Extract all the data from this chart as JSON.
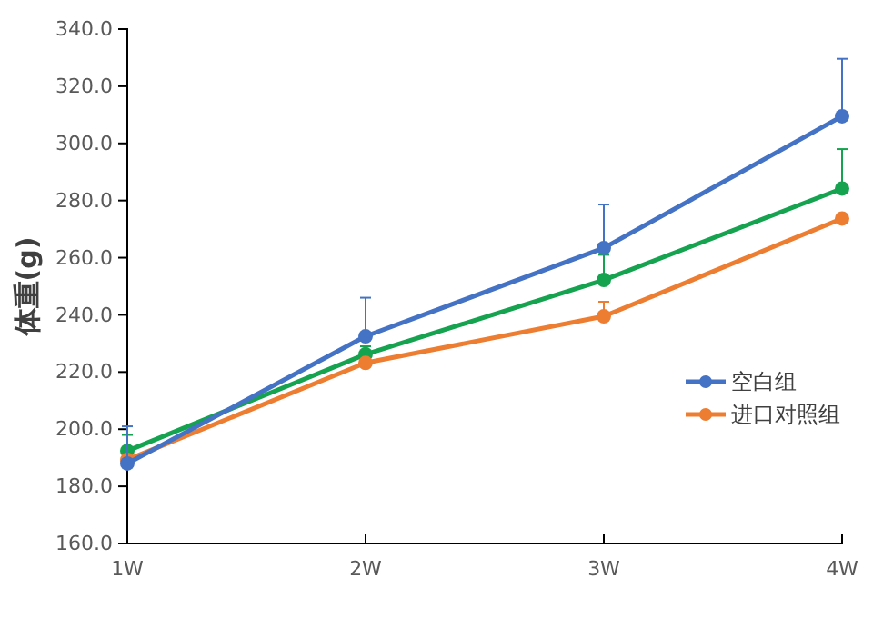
{
  "chart_data": {
    "type": "line",
    "ylabel": "体重(g)",
    "categories": [
      "1W",
      "2W",
      "3W",
      "4W"
    ],
    "ylim": [
      160,
      340
    ],
    "yticks": [
      {
        "value": 160,
        "label": "160.0"
      },
      {
        "value": 180,
        "label": "180.0"
      },
      {
        "value": 200,
        "label": "200.0"
      },
      {
        "value": 220,
        "label": "220.0"
      },
      {
        "value": 240,
        "label": "240.0"
      },
      {
        "value": 260,
        "label": "260.0"
      },
      {
        "value": 280,
        "label": "280.0"
      },
      {
        "value": 300,
        "label": "300.0"
      },
      {
        "value": 320,
        "label": "320.0"
      },
      {
        "value": 340,
        "label": "340.0"
      }
    ],
    "grid": false,
    "legend": "right",
    "marker": "circle",
    "line_style": "solid",
    "series": [
      {
        "name": "空白组",
        "color": "#4472c4",
        "values": [
          188,
          232.5,
          263.4,
          309.5
        ],
        "errors": [
          [
            188,
            201
          ],
          [
            232.5,
            246
          ],
          [
            263.4,
            278.6
          ],
          [
            309.5,
            329.6
          ]
        ]
      },
      {
        "name": "进口对照组",
        "color": "#ed7d31",
        "values": [
          189.3,
          223.2,
          239.5,
          273.7
        ],
        "errors": [
          null,
          null,
          [
            239.5,
            244.6
          ],
          null
        ]
      },
      {
        "color": "#16a350",
        "values": [
          192.4,
          226.2,
          252.2,
          284.2
        ],
        "errors": [
          [
            192.4,
            198
          ],
          [
            226.2,
            229
          ],
          [
            252.2,
            261
          ],
          [
            284.2,
            298
          ]
        ]
      }
    ]
  }
}
